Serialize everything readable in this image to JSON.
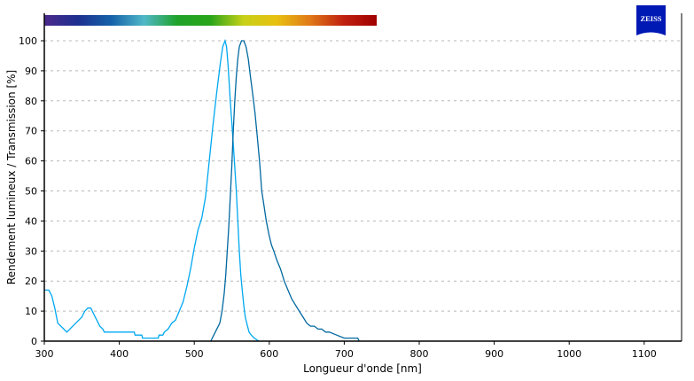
{
  "chart_data": {
    "type": "line",
    "xlabel": "Longueur d'onde [nm]",
    "ylabel": "Rendement lumineux / Transmission [%]",
    "xlim": [
      300,
      1150
    ],
    "ylim": [
      0,
      100
    ],
    "xticks": [
      300,
      400,
      500,
      600,
      700,
      800,
      900,
      1000,
      1100
    ],
    "yticks": [
      0,
      10,
      20,
      30,
      40,
      50,
      60,
      70,
      80,
      90,
      100
    ],
    "grid": "horizontal dashed",
    "spectrum_bar": {
      "range_nm": [
        380,
        780
      ],
      "colors": [
        "#4b2a8c",
        "#1d2f8f",
        "#1560a8",
        "#4fb8c8",
        "#1fa22a",
        "#2aa51a",
        "#c8d018",
        "#e8c010",
        "#e07818",
        "#c02010",
        "#a00000"
      ]
    },
    "series": [
      {
        "color": "#00a8f0",
        "x": [
          300,
          306,
          310,
          314,
          318,
          322,
          326,
          330,
          334,
          338,
          342,
          346,
          350,
          354,
          358,
          362,
          366,
          370,
          374,
          378,
          380,
          420,
          421,
          430,
          431,
          452,
          453,
          458,
          460,
          465,
          470,
          475,
          480,
          485,
          490,
          495,
          500,
          505,
          510,
          515,
          520,
          525,
          530,
          535,
          538,
          541,
          543,
          545,
          548,
          550,
          553,
          556,
          558,
          560,
          562,
          564,
          566,
          568,
          570,
          573,
          576,
          580,
          583,
          586
        ],
        "y": [
          17,
          17,
          15,
          11,
          6,
          5,
          4,
          3,
          4,
          5,
          6,
          7,
          8,
          10,
          11,
          11,
          9,
          7,
          5,
          4,
          3,
          3,
          2,
          2,
          1,
          1,
          2,
          2,
          3,
          4,
          6,
          7,
          10,
          13,
          18,
          24,
          31,
          37,
          41,
          48,
          60,
          72,
          83,
          93,
          98,
          100,
          98,
          92,
          80,
          73,
          62,
          50,
          40,
          30,
          22,
          17,
          12,
          8,
          6,
          3,
          2,
          1,
          0.5,
          0
        ]
      },
      {
        "color": "#0068a0",
        "x": [
          522,
          526,
          530,
          534,
          537,
          540,
          542,
          544,
          546,
          548,
          550,
          552,
          554,
          556,
          558,
          560,
          563,
          566,
          569,
          572,
          575,
          578,
          581,
          584,
          587,
          590,
          593,
          596,
          600,
          603,
          606,
          610,
          615,
          620,
          625,
          630,
          635,
          640,
          645,
          650,
          655,
          660,
          665,
          670,
          675,
          680,
          690,
          700,
          705,
          718,
          720
        ],
        "y": [
          0,
          2,
          4,
          6,
          10,
          16,
          22,
          30,
          38,
          48,
          58,
          70,
          80,
          88,
          94,
          98,
          100,
          100,
          98,
          94,
          88,
          82,
          76,
          68,
          60,
          50,
          45,
          40,
          35,
          32,
          30,
          27,
          24,
          20,
          17,
          14,
          12,
          10,
          8,
          6,
          5,
          5,
          4,
          4,
          3,
          3,
          2,
          1,
          1,
          1,
          0
        ]
      }
    ]
  },
  "logo": {
    "text": "ZEISS",
    "color": "#0018b4"
  }
}
